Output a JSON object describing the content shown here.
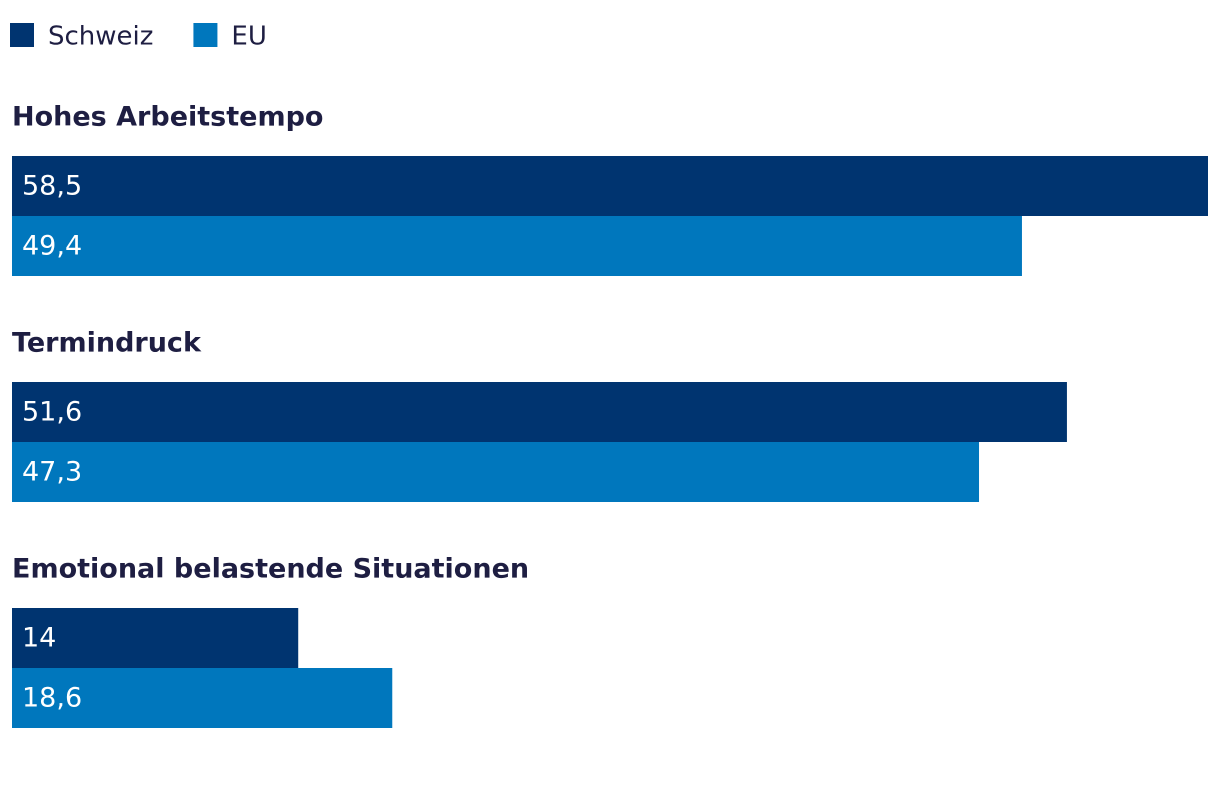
{
  "chart_data": {
    "type": "bar",
    "orientation": "horizontal",
    "categories": [
      "Hohes Arbeitstempo",
      "Termindruck",
      "Emotional belastende Situationen"
    ],
    "series": [
      {
        "name": "Schweiz",
        "color": "#003470",
        "values": [
          58.5,
          51.6,
          14
        ],
        "value_labels": [
          "58,5",
          "51,6",
          "14"
        ]
      },
      {
        "name": "EU",
        "color": "#0077bd",
        "values": [
          49.4,
          47.3,
          18.6
        ],
        "value_labels": [
          "49,4",
          "47,3",
          "18,6"
        ]
      }
    ]
  }
}
